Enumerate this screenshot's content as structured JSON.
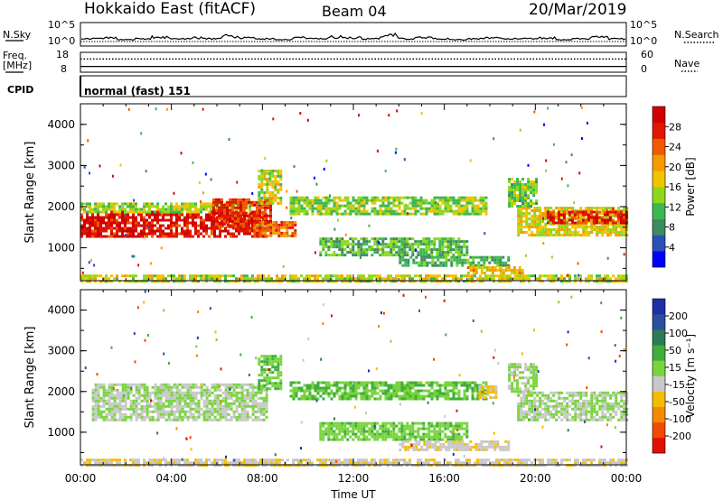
{
  "header": {
    "station": "Hokkaido East (fitACF)",
    "beam": "Beam 04",
    "date": "20/Mar/2019"
  },
  "left_labels": {
    "nsky": "N.Sky",
    "freq_1": "Freq.",
    "freq_2": "[MHz]",
    "cpid": "CPID"
  },
  "right_labels": {
    "nsearch": "N.Search",
    "nave": "Nave"
  },
  "cpid_text": "normal (fast) 151",
  "colors": {
    "power": [
      "#0000ff",
      "#2a4fb8",
      "#3d8c5e",
      "#3cb850",
      "#8ed81a",
      "#f2c300",
      "#f59a00",
      "#ef5a00",
      "#e01800",
      "#d00000"
    ],
    "velocity": [
      "#e01000",
      "#f24a00",
      "#f58a00",
      "#f4be00",
      "#c8c8c8",
      "#78d43c",
      "#3fae3c",
      "#2d7a57",
      "#2a4ea0",
      "#1f2fa6"
    ]
  },
  "chart_data": [
    {
      "type": "line",
      "panel": "noise",
      "series": [
        {
          "name": "N.Sky"
        },
        {
          "name": "N.Search"
        }
      ],
      "ylabel": "N.Sky",
      "y_ticks_left": [
        "10^5",
        "10^0"
      ],
      "y_ticks_right": [
        "10^5",
        "10^0"
      ],
      "sky_level_profile": [
        2,
        3,
        1,
        2,
        4,
        2,
        3,
        2,
        5,
        3,
        2,
        1,
        3,
        2,
        4,
        3,
        2,
        6,
        2,
        3,
        2,
        1,
        2,
        3,
        2,
        2,
        3,
        1,
        2,
        4,
        2,
        3
      ]
    },
    {
      "type": "line",
      "panel": "freq",
      "series": [
        {
          "name": "Freq."
        },
        {
          "name": "Nave"
        }
      ],
      "y_ticks_left": [
        "18",
        "8"
      ],
      "y_ticks_right": [
        "60",
        "0"
      ],
      "frequency_mhz": 10.9,
      "nave": 40
    },
    {
      "type": "heatmap",
      "panel": "power",
      "xlabel": "Time UT",
      "ylabel": "Slant Range [km]",
      "x_ticks": [
        "00:00",
        "04:00",
        "08:00",
        "12:00",
        "16:00",
        "20:00",
        "00:00"
      ],
      "y_ticks": [
        "1000",
        "2000",
        "3000",
        "4000"
      ],
      "xlim_hours": [
        0,
        24
      ],
      "ylim_km": [
        200,
        4500
      ],
      "colorbar": {
        "label": "Power [dB]",
        "ticks": [
          "4",
          "8",
          "12",
          "16",
          "20",
          "24",
          "28"
        ],
        "range": [
          0,
          30
        ]
      },
      "regions": [
        {
          "t0": 0.0,
          "t1": 8.2,
          "r0": 1250,
          "r1": 1900,
          "value": 27
        },
        {
          "t0": 0.0,
          "t1": 7.5,
          "r0": 1900,
          "r1": 2100,
          "value": 14
        },
        {
          "t0": 5.8,
          "t1": 8.4,
          "r0": 1500,
          "r1": 2200,
          "value": 25
        },
        {
          "t0": 7.6,
          "t1": 9.5,
          "r0": 1300,
          "r1": 1650,
          "value": 22
        },
        {
          "t0": 7.8,
          "t1": 8.8,
          "r0": 2100,
          "r1": 2900,
          "value": 15
        },
        {
          "t0": 9.2,
          "t1": 17.8,
          "r0": 1800,
          "r1": 2250,
          "value": 13
        },
        {
          "t0": 10.5,
          "t1": 17.0,
          "r0": 800,
          "r1": 1250,
          "value": 11
        },
        {
          "t0": 14.0,
          "t1": 18.8,
          "r0": 550,
          "r1": 800,
          "value": 10
        },
        {
          "t0": 17.0,
          "t1": 19.5,
          "r0": 400,
          "r1": 550,
          "value": 18
        },
        {
          "t0": 19.2,
          "t1": 24.0,
          "r0": 1300,
          "r1": 2000,
          "value": 16
        },
        {
          "t0": 20.5,
          "t1": 24.0,
          "r0": 1600,
          "r1": 1900,
          "value": 26
        },
        {
          "t0": 18.8,
          "t1": 20.0,
          "r0": 2000,
          "r1": 2700,
          "value": 12
        },
        {
          "t0": 0.0,
          "t1": 24.0,
          "r0": 200,
          "r1": 350,
          "value": 15
        }
      ]
    },
    {
      "type": "heatmap",
      "panel": "velocity",
      "xlabel": "Time UT",
      "ylabel": "Slant Range [km]",
      "x_ticks": [
        "00:00",
        "04:00",
        "08:00",
        "12:00",
        "16:00",
        "20:00",
        "00:00"
      ],
      "y_ticks": [
        "1000",
        "2000",
        "3000",
        "4000"
      ],
      "xlim_hours": [
        0,
        24
      ],
      "ylim_km": [
        200,
        4500
      ],
      "colorbar": {
        "label": "Velocity [m s⁻¹]",
        "ticks": [
          "-200",
          "-100",
          "-50",
          "-15",
          "15",
          "50",
          "100",
          "200"
        ],
        "range": [
          -250,
          250
        ]
      },
      "regions": [
        {
          "t0": 0.5,
          "t1": 8.2,
          "r0": 1300,
          "r1": 2200,
          "value": 0
        },
        {
          "t0": 7.8,
          "t1": 8.8,
          "r0": 2100,
          "r1": 2900,
          "value": 40
        },
        {
          "t0": 9.2,
          "t1": 17.8,
          "r0": 1800,
          "r1": 2250,
          "value": 45
        },
        {
          "t0": 10.5,
          "t1": 17.0,
          "r0": 800,
          "r1": 1250,
          "value": 35
        },
        {
          "t0": 14.0,
          "t1": 18.8,
          "r0": 550,
          "r1": 800,
          "value": -35
        },
        {
          "t0": 17.5,
          "t1": 18.3,
          "r0": 1850,
          "r1": 2150,
          "value": -60
        },
        {
          "t0": 19.2,
          "t1": 24.0,
          "r0": 1300,
          "r1": 2000,
          "value": 0
        },
        {
          "t0": 18.8,
          "t1": 20.0,
          "r0": 2000,
          "r1": 2700,
          "value": 5
        },
        {
          "t0": 0.0,
          "t1": 24.0,
          "r0": 200,
          "r1": 350,
          "value": -40
        }
      ]
    }
  ]
}
